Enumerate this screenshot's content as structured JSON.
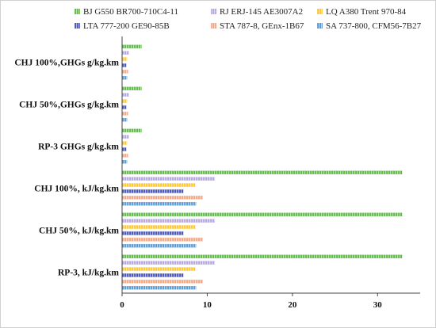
{
  "chart_data": {
    "type": "bar",
    "orientation": "horizontal",
    "categories": [
      "RP-3, kJ/kg.km",
      "CHJ 50%, kJ/kg.km",
      "CHJ 100%, kJ/kg.km",
      "RP-3 GHGs   g/kg.km",
      "CHJ 50%,GHGs g/kg.km",
      "CHJ 100%,GHGs g/kg.km"
    ],
    "series": [
      {
        "name": "SA 737-800, CFM56-7B27",
        "color": "#5B9BD5",
        "values": [
          8.7,
          8.7,
          8.7,
          0.6,
          0.6,
          0.6
        ]
      },
      {
        "name": "STA 787-8, GEnx-1B67",
        "color": "#F4A582",
        "values": [
          9.5,
          9.5,
          9.5,
          0.7,
          0.7,
          0.7
        ]
      },
      {
        "name": "LTA 777-200 GE90-85B",
        "color": "#4A54B8",
        "values": [
          7.2,
          7.2,
          7.2,
          0.5,
          0.5,
          0.5
        ]
      },
      {
        "name": "LQ A380 Trent 970-84",
        "color": "#FFC72C",
        "values": [
          8.6,
          8.6,
          8.6,
          0.6,
          0.6,
          0.6
        ]
      },
      {
        "name": "RJ ERJ-145 AE3007A2",
        "color": "#B4A7E0",
        "values": [
          10.9,
          10.9,
          10.9,
          0.8,
          0.8,
          0.8
        ]
      },
      {
        "name": "BJ G550 BR700-710C4-11",
        "color": "#5DBB46",
        "values": [
          32.9,
          32.9,
          32.9,
          2.3,
          2.3,
          2.3
        ]
      }
    ],
    "xlim": [
      0,
      35
    ],
    "xticks": [
      0,
      10,
      20,
      30
    ],
    "xlabel": "",
    "ylabel": "",
    "title": "",
    "grid": false,
    "legend_position": "top"
  }
}
